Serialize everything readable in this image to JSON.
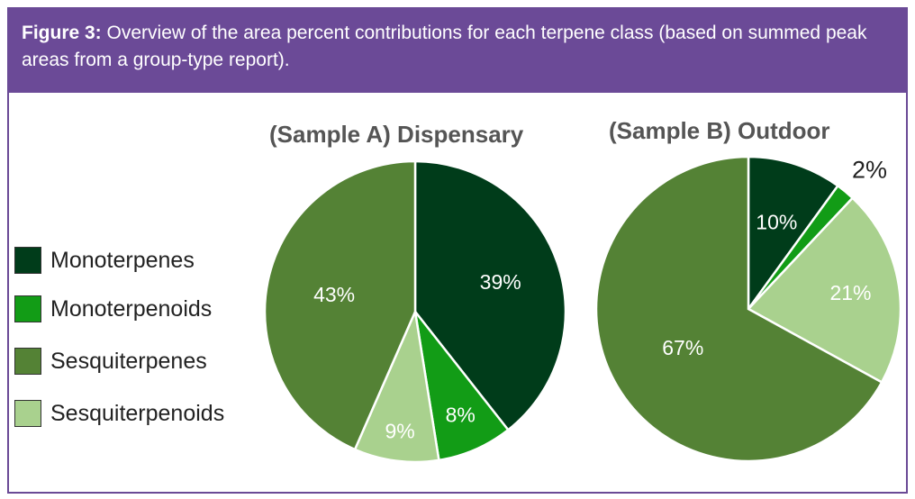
{
  "figure": {
    "label": "Figure 3:",
    "caption": " Overview of the area percent contributions for each terpene class (based on summed peak areas from a group-type report)."
  },
  "colors": {
    "header": "#6b4a97",
    "monoterpenes": "#003c1a",
    "monoterpenoids": "#129c16",
    "sesquiterpenes": "#548235",
    "sesquiterpenoids": "#a9d18e"
  },
  "legend": [
    {
      "label": "Monoterpenes",
      "color": "#003c1a"
    },
    {
      "label": "Monoterpenoids",
      "color": "#129c16"
    },
    {
      "label": "Sesquiterpenes",
      "color": "#548235"
    },
    {
      "label": "Sesquiterpenoids",
      "color": "#a9d18e"
    }
  ],
  "chart_data": [
    {
      "type": "pie",
      "title": "(Sample A) Dispensary",
      "categories": [
        "Monoterpenes",
        "Monoterpenoids",
        "Sesquiterpenoids",
        "Sesquiterpenes"
      ],
      "values": [
        39,
        8,
        9,
        43
      ],
      "labels": [
        "39%",
        "8%",
        "9%",
        "43%"
      ]
    },
    {
      "type": "pie",
      "title": "(Sample B) Outdoor",
      "categories": [
        "Monoterpenes",
        "Monoterpenoids",
        "Sesquiterpenoids",
        "Sesquiterpenes"
      ],
      "values": [
        10,
        2,
        21,
        67
      ],
      "labels": [
        "10%",
        "2%",
        "21%",
        "67%"
      ]
    }
  ]
}
